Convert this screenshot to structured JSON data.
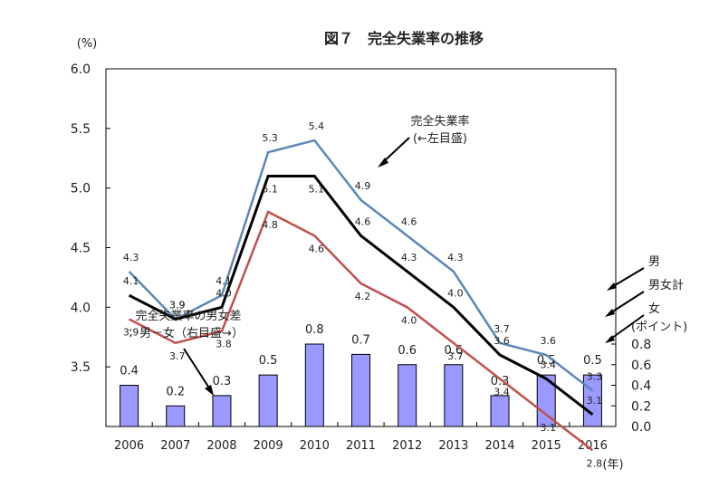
{
  "chart_data": {
    "type": "line",
    "title": "図７　完全失業率の推移",
    "left_unit": "(%)",
    "x_unit": "(年)",
    "categories": [
      "2006",
      "2007",
      "2008",
      "2009",
      "2010",
      "2011",
      "2012",
      "2013",
      "2014",
      "2015",
      "2016"
    ],
    "left_axis": {
      "ylim": [
        3.0,
        6.0
      ],
      "ticks": [
        "3.5",
        "4.0",
        "4.5",
        "5.0",
        "5.5",
        "6.0"
      ]
    },
    "right_axis": {
      "ylim": [
        0.0,
        0.8
      ],
      "ticks": [
        "0.0",
        "0.2",
        "0.4",
        "0.6",
        "0.8"
      ],
      "unit": "(ポイント)"
    },
    "grid": false,
    "series": [
      {
        "name": "男",
        "color": "#5b87b5",
        "values": [
          4.3,
          3.9,
          4.1,
          5.3,
          5.4,
          4.9,
          4.6,
          4.3,
          3.7,
          3.6,
          3.3
        ],
        "labels": [
          "4.3",
          "3.9",
          "4.1",
          "5.3",
          "5.4",
          "4.9",
          "4.6",
          "4.3",
          "3.7",
          "3.6",
          "3.3"
        ]
      },
      {
        "name": "男女計",
        "color": "#000000",
        "values": [
          4.1,
          3.9,
          4.0,
          5.1,
          5.1,
          4.6,
          4.3,
          4.0,
          3.6,
          3.4,
          3.1
        ],
        "labels": [
          "4.1",
          "3.9",
          "4.0",
          "5.1",
          "5.1",
          "4.6",
          "4.3",
          "4.0",
          "3.6",
          "3.4",
          "3.1"
        ]
      },
      {
        "name": "女",
        "color": "#c0504d",
        "values": [
          3.9,
          3.7,
          3.8,
          4.8,
          4.6,
          4.2,
          4.0,
          3.7,
          3.4,
          3.1,
          2.8
        ],
        "labels": [
          "3.9",
          "3.7",
          "3.8",
          "4.8",
          "4.6",
          "4.2",
          "4.0",
          "3.7",
          "3.4",
          "3.1",
          "2.8"
        ]
      }
    ],
    "bars": {
      "name": "完全失業率の男女差",
      "color": "#9999ff",
      "values": [
        0.4,
        0.2,
        0.3,
        0.5,
        0.8,
        0.7,
        0.6,
        0.6,
        0.3,
        0.5,
        0.5
      ],
      "labels": [
        "0.4",
        "0.2",
        "0.3",
        "0.5",
        "0.8",
        "0.7",
        "0.6",
        "0.6",
        "0.3",
        "0.5",
        "0.5"
      ]
    },
    "annotations": {
      "total_line_1": "完全失業率",
      "total_line_2": "(←左目盛)",
      "gap_line_1": "完全失業率の男女差",
      "gap_line_2": "：男－女（右目盛→）"
    }
  }
}
